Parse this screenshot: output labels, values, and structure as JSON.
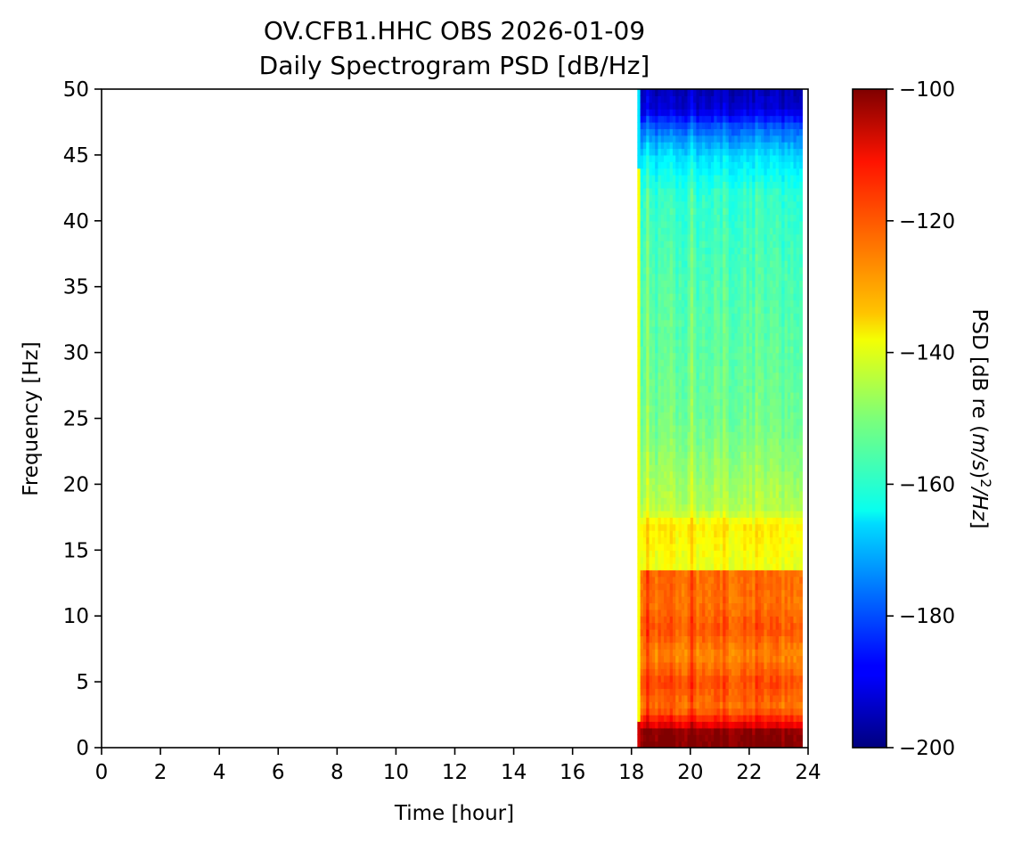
{
  "chart_data": {
    "type": "heatmap",
    "title": "OV.CFB1.HHC OBS 2026-01-09",
    "subtitle": "Daily Spectrogram PSD [dB/Hz]",
    "xlabel": "Time [hour]",
    "ylabel": "Frequency [Hz]",
    "xlim": [
      0,
      24
    ],
    "ylim": [
      0,
      50
    ],
    "xticks": [
      "0",
      "2",
      "4",
      "6",
      "8",
      "10",
      "12",
      "14",
      "16",
      "18",
      "20",
      "22",
      "24"
    ],
    "yticks": [
      "0",
      "5",
      "10",
      "15",
      "20",
      "25",
      "30",
      "35",
      "40",
      "45",
      "50"
    ],
    "data_time_range": [
      18.2,
      23.8
    ],
    "colormap": "jet",
    "colorbar": {
      "label_main": "PSD [dB re (",
      "label_italic": "m/s",
      "label_tail_italic": "/Hz",
      "label_sup": "2",
      "label_close": "]",
      "min": -200,
      "max": -100,
      "ticks": [
        "−100",
        "−120",
        "−140",
        "−160",
        "−180",
        "−200"
      ]
    },
    "frequency_profile_db": [
      {
        "f": 0.0,
        "db": -100
      },
      {
        "f": 1.3,
        "db": -102
      },
      {
        "f": 1.8,
        "db": -112
      },
      {
        "f": 3.0,
        "db": -124
      },
      {
        "f": 5.0,
        "db": -120
      },
      {
        "f": 7.0,
        "db": -126
      },
      {
        "f": 9.0,
        "db": -121
      },
      {
        "f": 11.0,
        "db": -124
      },
      {
        "f": 13.3,
        "db": -123
      },
      {
        "f": 13.5,
        "db": -140
      },
      {
        "f": 17.0,
        "db": -136
      },
      {
        "f": 18.0,
        "db": -145
      },
      {
        "f": 25.0,
        "db": -152
      },
      {
        "f": 35.0,
        "db": -155
      },
      {
        "f": 42.0,
        "db": -158
      },
      {
        "f": 45.0,
        "db": -166
      },
      {
        "f": 47.0,
        "db": -178
      },
      {
        "f": 48.5,
        "db": -192
      },
      {
        "f": 50.0,
        "db": -195
      }
    ]
  }
}
